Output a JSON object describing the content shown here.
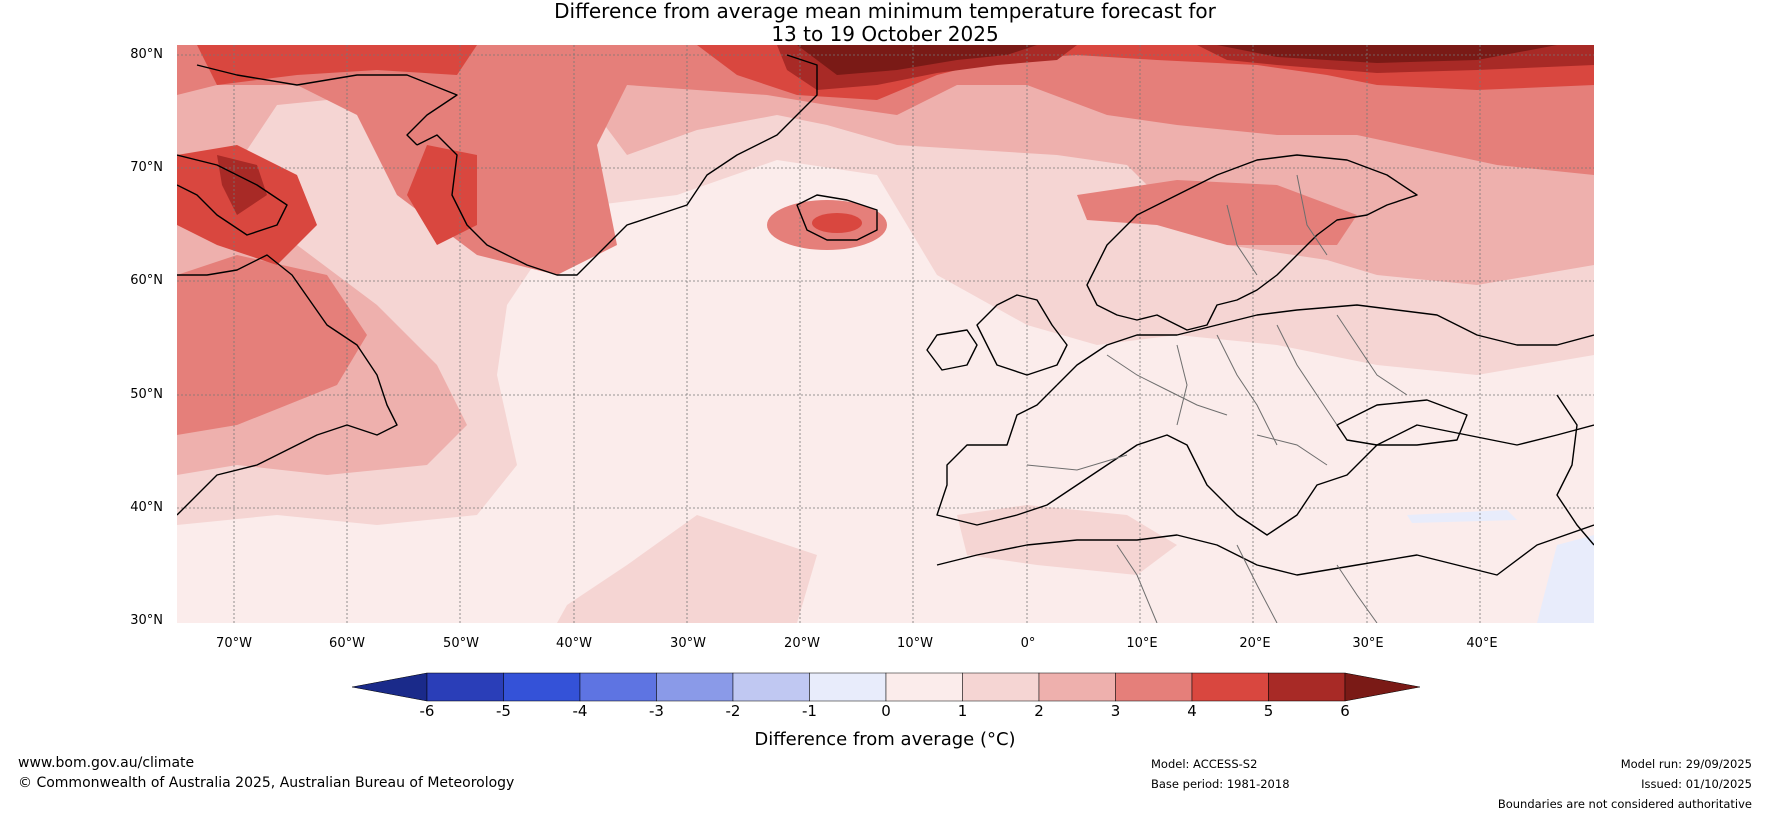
{
  "title": {
    "line1": "Difference from average mean minimum temperature forecast for",
    "line2": "13 to 19 October 2025"
  },
  "map": {
    "region": "North Atlantic and Europe",
    "lat_labels": [
      "80°N",
      "70°N",
      "60°N",
      "50°N",
      "40°N",
      "30°N"
    ],
    "lon_labels": [
      "70°W",
      "60°W",
      "50°W",
      "40°W",
      "30°W",
      "20°W",
      "10°W",
      "0°",
      "10°E",
      "20°E",
      "30°E",
      "40°E"
    ]
  },
  "colorbar": {
    "ticks": [
      "-6",
      "-5",
      "-4",
      "-3",
      "-2",
      "-1",
      "0",
      "1",
      "2",
      "3",
      "4",
      "5",
      "6"
    ],
    "colors": [
      "#1a2a8a",
      "#2a3eb8",
      "#3452d8",
      "#5e74e2",
      "#8a9ae8",
      "#c0c8f2",
      "#e8ecfb",
      "#fbeceb",
      "#f5d5d3",
      "#eeb0ad",
      "#e57f7a",
      "#d9473f",
      "#a82a26",
      "#7a1a16"
    ],
    "label": "Difference from average (°C)"
  },
  "footer": {
    "website": "www.bom.gov.au/climate",
    "copyright": "© Commonwealth of Australia 2025, Australian Bureau of Meteorology",
    "model": "Model: ACCESS-S2",
    "base_period": "Base period: 1981-2018",
    "model_run": "Model run: 29/09/2025",
    "issued": "Issued: 01/10/2025",
    "disclaimer": "Boundaries are not considered authoritative"
  }
}
